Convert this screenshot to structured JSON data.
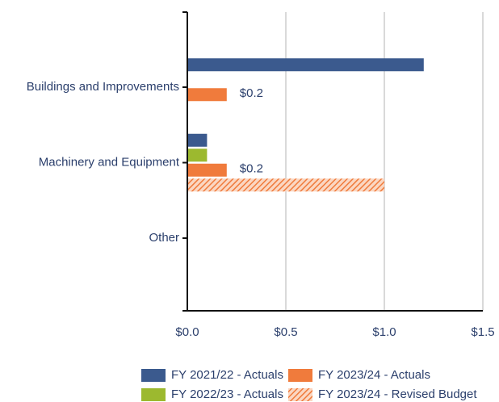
{
  "chart_data": {
    "type": "hbar",
    "categories": [
      "Buildings and Improvements",
      "Machinery and Equipment",
      "Other"
    ],
    "series": [
      {
        "name": "FY 2021/22 - Actuals",
        "color": "#3b5a8e",
        "values": [
          1.2,
          0.1,
          0
        ]
      },
      {
        "name": "FY 2022/23 - Actuals",
        "color": "#9cb92f",
        "values": [
          0,
          0.1,
          0
        ]
      },
      {
        "name": "FY 2023/24 - Actuals",
        "color": "#f07b3c",
        "values": [
          0.2,
          0.2,
          0
        ],
        "value_labels": [
          "$0.2",
          "$0.2",
          null
        ]
      },
      {
        "name": "FY 2023/24 - Revised Budget",
        "color": "#f07b3c",
        "hatch": true,
        "values": [
          0,
          1.0,
          0
        ]
      }
    ],
    "xlim": [
      0,
      1.5
    ],
    "xticks": [
      {
        "value": 0,
        "label": "$0.0"
      },
      {
        "value": 0.5,
        "label": "$0.5"
      },
      {
        "value": 1.0,
        "label": "$1.0"
      },
      {
        "value": 1.5,
        "label": "$1.5"
      }
    ],
    "grid": true,
    "legend": "bottom"
  }
}
